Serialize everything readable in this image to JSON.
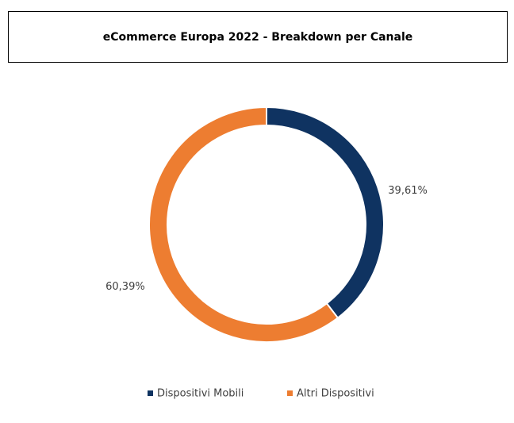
{
  "chart_data": {
    "type": "donut",
    "title": "eCommerce Europa 2022 - Breakdown per Canale",
    "categories": [
      "Dispositivi Mobili",
      "Altri Dispositivi"
    ],
    "values": [
      39.61,
      60.39
    ],
    "value_labels": [
      "39,61%",
      "60,39%"
    ],
    "colors": [
      "#0f3361",
      "#ed7d31"
    ],
    "legend": "bottom"
  }
}
